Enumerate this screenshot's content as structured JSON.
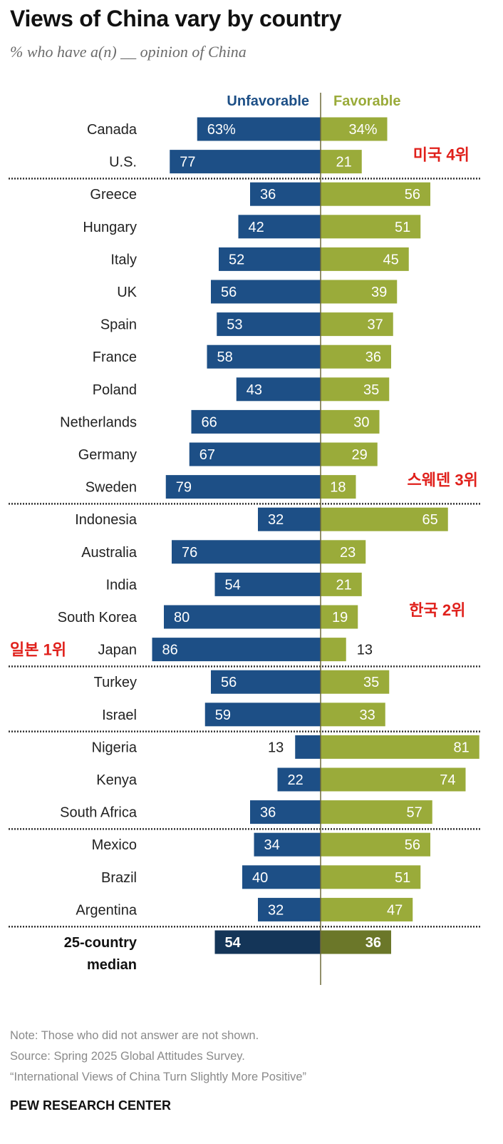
{
  "title": "Views of China vary by country",
  "subtitle": "% who have a(n) __ opinion of China",
  "colors": {
    "unfavorable": "#1d4f86",
    "favorable": "#9aab3a",
    "median_unfavorable": "#143558",
    "median_favorable": "#6b7729",
    "annotation": "#e0201b"
  },
  "chart_data": {
    "type": "bar",
    "orientation": "diverging-horizontal",
    "title": "Views of China vary by country",
    "subtitle": "% who have a(n) __ opinion of China",
    "series": [
      {
        "name": "Unfavorable"
      },
      {
        "name": "Favorable"
      }
    ],
    "groups": [
      {
        "rows": [
          {
            "country": "Canada",
            "unfavorable": 63,
            "favorable": 34,
            "unfav_label": "63%",
            "fav_label": "34%"
          },
          {
            "country": "U.S.",
            "unfavorable": 77,
            "favorable": 21,
            "unfav_label": "77",
            "fav_label": "21",
            "annotation": "미국 4위",
            "annotation_side": "right"
          }
        ]
      },
      {
        "rows": [
          {
            "country": "Greece",
            "unfavorable": 36,
            "favorable": 56,
            "unfav_label": "36",
            "fav_label": "56"
          },
          {
            "country": "Hungary",
            "unfavorable": 42,
            "favorable": 51,
            "unfav_label": "42",
            "fav_label": "51"
          },
          {
            "country": "Italy",
            "unfavorable": 52,
            "favorable": 45,
            "unfav_label": "52",
            "fav_label": "45"
          },
          {
            "country": "UK",
            "unfavorable": 56,
            "favorable": 39,
            "unfav_label": "56",
            "fav_label": "39"
          },
          {
            "country": "Spain",
            "unfavorable": 53,
            "favorable": 37,
            "unfav_label": "53",
            "fav_label": "37"
          },
          {
            "country": "France",
            "unfavorable": 58,
            "favorable": 36,
            "unfav_label": "58",
            "fav_label": "36"
          },
          {
            "country": "Poland",
            "unfavorable": 43,
            "favorable": 35,
            "unfav_label": "43",
            "fav_label": "35"
          },
          {
            "country": "Netherlands",
            "unfavorable": 66,
            "favorable": 30,
            "unfav_label": "66",
            "fav_label": "30"
          },
          {
            "country": "Germany",
            "unfavorable": 67,
            "favorable": 29,
            "unfav_label": "67",
            "fav_label": "29"
          },
          {
            "country": "Sweden",
            "unfavorable": 79,
            "favorable": 18,
            "unfav_label": "79",
            "fav_label": "18",
            "annotation": "스웨덴 3위",
            "annotation_side": "right"
          }
        ]
      },
      {
        "rows": [
          {
            "country": "Indonesia",
            "unfavorable": 32,
            "favorable": 65,
            "unfav_label": "32",
            "fav_label": "65"
          },
          {
            "country": "Australia",
            "unfavorable": 76,
            "favorable": 23,
            "unfav_label": "76",
            "fav_label": "23"
          },
          {
            "country": "India",
            "unfavorable": 54,
            "favorable": 21,
            "unfav_label": "54",
            "fav_label": "21"
          },
          {
            "country": "South Korea",
            "unfavorable": 80,
            "favorable": 19,
            "unfav_label": "80",
            "fav_label": "19",
            "annotation": "한국 2위",
            "annotation_side": "right"
          },
          {
            "country": "Japan",
            "unfavorable": 86,
            "favorable": 13,
            "unfav_label": "86",
            "fav_label": "13",
            "annotation": "일본 1위",
            "annotation_side": "left"
          }
        ]
      },
      {
        "rows": [
          {
            "country": "Turkey",
            "unfavorable": 56,
            "favorable": 35,
            "unfav_label": "56",
            "fav_label": "35"
          },
          {
            "country": "Israel",
            "unfavorable": 59,
            "favorable": 33,
            "unfav_label": "59",
            "fav_label": "33"
          }
        ]
      },
      {
        "rows": [
          {
            "country": "Nigeria",
            "unfavorable": 13,
            "favorable": 81,
            "unfav_label": "13",
            "fav_label": "81"
          },
          {
            "country": "Kenya",
            "unfavorable": 22,
            "favorable": 74,
            "unfav_label": "22",
            "fav_label": "74"
          },
          {
            "country": "South Africa",
            "unfavorable": 36,
            "favorable": 57,
            "unfav_label": "36",
            "fav_label": "57"
          }
        ]
      },
      {
        "rows": [
          {
            "country": "Mexico",
            "unfavorable": 34,
            "favorable": 56,
            "unfav_label": "34",
            "fav_label": "56"
          },
          {
            "country": "Brazil",
            "unfavorable": 40,
            "favorable": 51,
            "unfav_label": "40",
            "fav_label": "51"
          },
          {
            "country": "Argentina",
            "unfavorable": 32,
            "favorable": 47,
            "unfav_label": "32",
            "fav_label": "47"
          }
        ]
      }
    ],
    "median": {
      "label_line1": "25-country",
      "label_line2": "median",
      "unfavorable": 54,
      "favorable": 36,
      "unfav_label": "54",
      "fav_label": "36"
    }
  },
  "notes": {
    "note": "Note: Those who did not answer are not shown.",
    "source": "Source: Spring 2025 Global Attitudes Survey.",
    "report": "“International Views of China Turn Slightly More Positive”"
  },
  "brand": "PEW RESEARCH CENTER"
}
